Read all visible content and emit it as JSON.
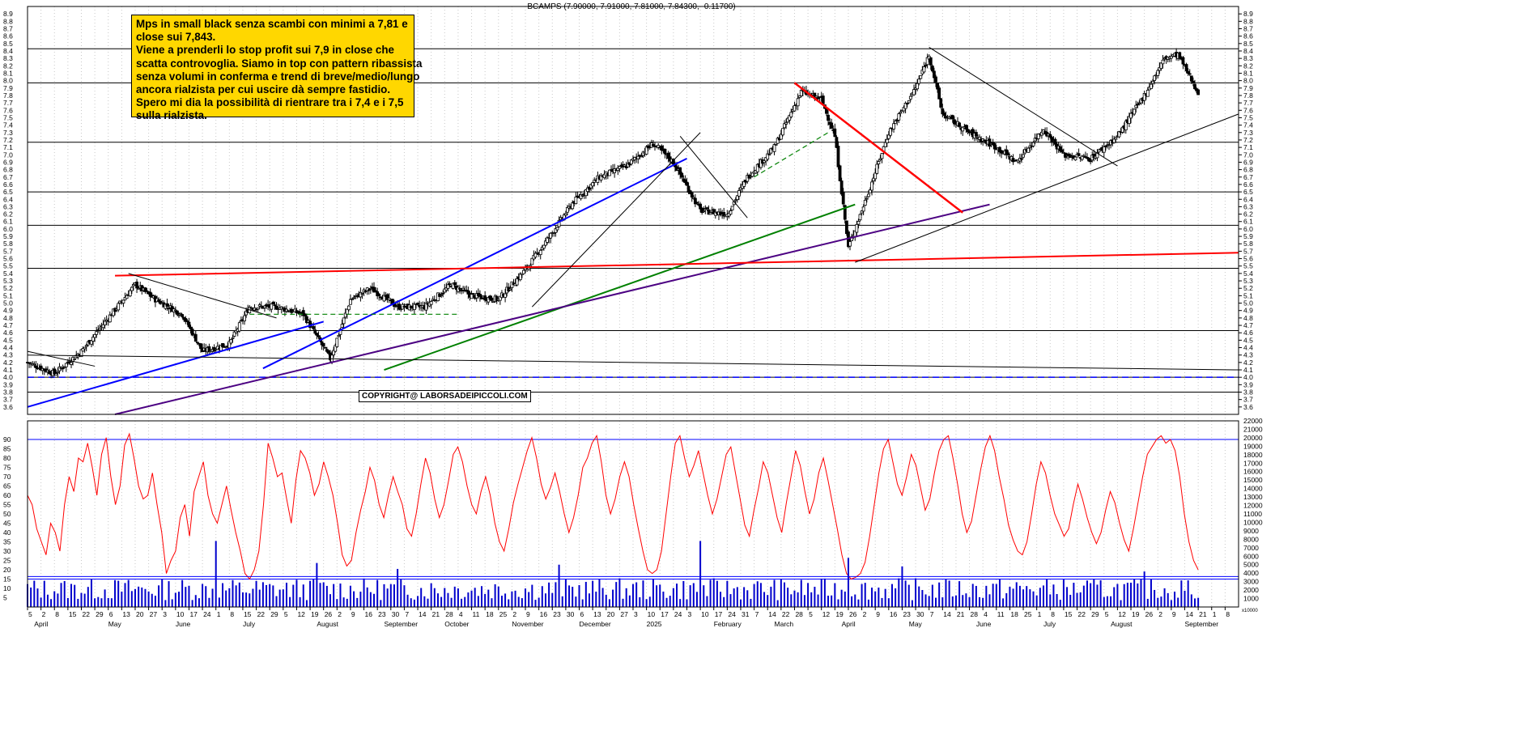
{
  "header": {
    "title": "BCAMPS (7.90000, 7.91000, 7.81000, 7.84300, -0.11700)"
  },
  "note": {
    "lines": [
      "Mps in small black senza scambi con minimi a 7,81 e",
      "close sui 7,843.",
      "Viene a prenderli lo stop profit sui 7,9 in close che",
      "scatta controvoglia. Siamo in top con pattern ribassista",
      "senza volumi in conferma e trend di breve/medio/lungo",
      "ancora rialzista per cui uscire dà sempre fastidio.",
      "Spero mi dia la possibilità di rientrare tra i 7,4 e i 7,5",
      "sulla rialzista."
    ]
  },
  "copyright": "COPYRIGHT@ LABORSADEIPICCOLI.COM",
  "colors": {
    "candles": "#000000",
    "rsi": "#ff0000",
    "volume": "#0000cc",
    "blue_lines": "#0000ff",
    "red_lines": "#ff0000",
    "green_lines": "#008000",
    "purple_lines": "#4b0082",
    "note_bg": "#ffd700"
  },
  "chart_data": [
    {
      "type": "candlestick",
      "series": [
        {
          "name": "BCAMPS"
        }
      ],
      "ylim": [
        3.5,
        9.0
      ],
      "y_ticks": [
        3.6,
        3.7,
        3.8,
        3.9,
        4.0,
        4.1,
        4.2,
        4.3,
        4.4,
        4.5,
        4.6,
        4.7,
        4.8,
        4.9,
        5.0,
        5.1,
        5.2,
        5.3,
        5.4,
        5.5,
        5.6,
        5.7,
        5.8,
        5.9,
        6.0,
        6.1,
        6.2,
        6.3,
        6.4,
        6.5,
        6.6,
        6.7,
        6.8,
        6.9,
        7.0,
        7.1,
        7.2,
        7.3,
        7.4,
        7.5,
        7.6,
        7.7,
        7.8,
        7.9,
        8.0,
        8.1,
        8.2,
        8.3,
        8.4,
        8.5,
        8.6,
        8.7,
        8.8,
        8.9
      ],
      "y_tick_labels": [
        "3.6",
        "3.7",
        "3.8",
        "3.9",
        "4.0",
        "4.1",
        "4.2",
        "4.3",
        "4.4",
        "4.5",
        "4.6",
        "4.7",
        "4.8",
        "4.9",
        "5.0",
        "5.1",
        "5.2",
        "5.3",
        "5.4",
        "5.5",
        "5.6",
        "5.7",
        "5.8",
        "5.9",
        "6.0",
        "6.1",
        "6.2",
        "6.3",
        "6.4",
        "6.5",
        "6.6",
        "6.7",
        "6.8",
        "6.9",
        "7.0",
        "7.1",
        "7.2",
        "7.3",
        "7.4",
        "7.5",
        "7.6",
        "7.7",
        "7.8",
        "7.9",
        "8.0",
        "8.1",
        "8.2",
        "8.3",
        "8.4",
        "8.5",
        "8.6",
        "8.7",
        "8.8",
        "8.9"
      ],
      "horizontal_levels": [
        8.43,
        7.97,
        7.17,
        6.5,
        6.05,
        5.47,
        4.63,
        4.0,
        3.8
      ],
      "close_path": [
        {
          "x": 0,
          "y": 4.2
        },
        {
          "x": 4,
          "y": 4.05
        },
        {
          "x": 8,
          "y": 4.35
        },
        {
          "x": 12,
          "y": 4.8
        },
        {
          "x": 16,
          "y": 5.25
        },
        {
          "x": 19,
          "y": 5.05
        },
        {
          "x": 23,
          "y": 4.85
        },
        {
          "x": 26,
          "y": 4.35
        },
        {
          "x": 30,
          "y": 4.45
        },
        {
          "x": 33,
          "y": 4.95
        },
        {
          "x": 37,
          "y": 4.95
        },
        {
          "x": 41,
          "y": 4.85
        },
        {
          "x": 45,
          "y": 4.25
        },
        {
          "x": 48,
          "y": 5.05
        },
        {
          "x": 51,
          "y": 5.2
        },
        {
          "x": 55,
          "y": 4.95
        },
        {
          "x": 59,
          "y": 4.95
        },
        {
          "x": 63,
          "y": 5.25
        },
        {
          "x": 66,
          "y": 5.1
        },
        {
          "x": 70,
          "y": 5.05
        },
        {
          "x": 74,
          "y": 5.45
        },
        {
          "x": 78,
          "y": 5.95
        },
        {
          "x": 81,
          "y": 6.35
        },
        {
          "x": 85,
          "y": 6.7
        },
        {
          "x": 89,
          "y": 6.85
        },
        {
          "x": 93,
          "y": 7.15
        },
        {
          "x": 96,
          "y": 6.9
        },
        {
          "x": 100,
          "y": 6.25
        },
        {
          "x": 104,
          "y": 6.2
        },
        {
          "x": 107,
          "y": 6.7
        },
        {
          "x": 111,
          "y": 7.1
        },
        {
          "x": 115,
          "y": 7.85
        },
        {
          "x": 118,
          "y": 7.75
        },
        {
          "x": 120,
          "y": 7.25
        },
        {
          "x": 122,
          "y": 5.75
        },
        {
          "x": 125,
          "y": 6.5
        },
        {
          "x": 128,
          "y": 7.3
        },
        {
          "x": 132,
          "y": 7.9
        },
        {
          "x": 134,
          "y": 8.35
        },
        {
          "x": 136,
          "y": 7.55
        },
        {
          "x": 140,
          "y": 7.3
        },
        {
          "x": 144,
          "y": 7.1
        },
        {
          "x": 147,
          "y": 6.9
        },
        {
          "x": 151,
          "y": 7.35
        },
        {
          "x": 154,
          "y": 7.0
        },
        {
          "x": 158,
          "y": 6.95
        },
        {
          "x": 162,
          "y": 7.25
        },
        {
          "x": 166,
          "y": 7.8
        },
        {
          "x": 169,
          "y": 8.3
        },
        {
          "x": 171,
          "y": 8.35
        },
        {
          "x": 174,
          "y": 7.84
        }
      ]
    },
    {
      "type": "line",
      "series": [
        {
          "name": "RSI"
        }
      ],
      "ylim": [
        0,
        100
      ],
      "y_ticks": [
        5,
        10,
        15,
        20,
        25,
        30,
        35,
        40,
        45,
        50,
        55,
        60,
        65,
        70,
        75,
        80,
        85,
        90
      ],
      "y_tick_labels": [
        "5",
        "10",
        "15",
        "20",
        "25",
        "30",
        "35",
        "40",
        "45",
        "50",
        "55",
        "60",
        "65",
        "70",
        "75",
        "80",
        "85",
        "90"
      ],
      "horizontal_levels": [
        90,
        15
      ],
      "values": [
        60,
        55,
        42,
        35,
        28,
        45,
        40,
        30,
        55,
        70,
        62,
        80,
        78,
        88,
        75,
        60,
        82,
        91,
        70,
        55,
        65,
        87,
        93,
        80,
        65,
        58,
        60,
        72,
        55,
        40,
        18,
        25,
        30,
        48,
        55,
        38,
        62,
        70,
        78,
        60,
        50,
        45,
        55,
        65,
        52,
        40,
        30,
        18,
        15,
        20,
        30,
        55,
        88,
        80,
        70,
        72,
        58,
        45,
        68,
        84,
        80,
        72,
        60,
        66,
        78,
        70,
        60,
        45,
        28,
        22,
        25,
        40,
        52,
        62,
        75,
        68,
        55,
        48,
        60,
        70,
        62,
        55,
        42,
        38,
        50,
        66,
        80,
        72,
        58,
        48,
        55,
        68,
        82,
        86,
        78,
        65,
        55,
        50,
        62,
        70,
        60,
        45,
        35,
        30,
        42,
        56,
        66,
        75,
        84,
        91,
        80,
        66,
        58,
        64,
        72,
        62,
        50,
        40,
        48,
        60,
        75,
        80,
        88,
        92,
        78,
        60,
        50,
        58,
        70,
        78,
        70,
        55,
        42,
        30,
        20,
        18,
        20,
        30,
        50,
        70,
        88,
        92,
        80,
        70,
        76,
        84,
        72,
        60,
        50,
        58,
        70,
        82,
        86,
        72,
        58,
        44,
        38,
        52,
        64,
        78,
        72,
        60,
        48,
        40,
        56,
        70,
        84,
        76,
        62,
        50,
        58,
        72,
        80,
        68,
        55,
        42,
        28,
        18,
        15,
        16,
        18,
        24,
        38,
        55,
        72,
        85,
        90,
        78,
        66,
        60,
        70,
        82,
        76,
        64,
        52,
        58,
        72,
        84,
        90,
        92,
        80,
        66,
        50,
        40,
        46,
        60,
        74,
        86,
        92,
        84,
        70,
        58,
        44,
        36,
        30,
        28,
        35,
        50,
        66,
        78,
        72,
        60,
        50,
        44,
        38,
        42,
        55,
        66,
        58,
        48,
        40,
        34,
        40,
        52,
        62,
        56,
        45,
        36,
        30,
        42,
        56,
        70,
        82,
        86,
        90,
        92,
        88,
        90,
        84,
        70,
        50,
        35,
        25,
        20
      ]
    },
    {
      "type": "bar",
      "series": [
        {
          "name": "Volume"
        }
      ],
      "ylim": [
        0,
        22000
      ],
      "y_ticks": [
        1000,
        2000,
        3000,
        4000,
        5000,
        6000,
        7000,
        8000,
        9000,
        10000,
        11000,
        12000,
        13000,
        14000,
        15000,
        16000,
        17000,
        18000,
        19000,
        20000,
        21000,
        22000
      ],
      "y_tick_labels": [
        "1000",
        "2000",
        "3000",
        "4000",
        "5000",
        "6000",
        "7000",
        "8000",
        "9000",
        "10000",
        "11000",
        "12000",
        "13000",
        "14000",
        "15000",
        "16000",
        "17000",
        "18000",
        "19000",
        "20000",
        "21000",
        "22000"
      ],
      "axis_note": "x10000",
      "horizontal_levels": [
        3600
      ],
      "spikes": [
        {
          "x": 28,
          "value": 7800
        },
        {
          "x": 43,
          "value": 5200
        },
        {
          "x": 55,
          "value": 4500
        },
        {
          "x": 79,
          "value": 5000
        },
        {
          "x": 100,
          "value": 7800
        },
        {
          "x": 122,
          "value": 5800
        },
        {
          "x": 130,
          "value": 4800
        },
        {
          "x": 166,
          "value": 4200
        }
      ]
    }
  ],
  "x_axis": {
    "day_ticks": [
      {
        "x": 0,
        "label": "5"
      },
      {
        "x": 2,
        "label": "2"
      },
      {
        "x": 4,
        "label": "8"
      },
      {
        "x": 6,
        "label": "15"
      },
      {
        "x": 8,
        "label": "22"
      },
      {
        "x": 10,
        "label": "29"
      },
      {
        "x": 12,
        "label": "6"
      },
      {
        "x": 14,
        "label": "13"
      },
      {
        "x": 16,
        "label": "20"
      },
      {
        "x": 18,
        "label": "27"
      },
      {
        "x": 20,
        "label": "3"
      },
      {
        "x": 22,
        "label": "10"
      },
      {
        "x": 24,
        "label": "17"
      },
      {
        "x": 26,
        "label": "24"
      },
      {
        "x": 28,
        "label": "1"
      },
      {
        "x": 30,
        "label": "8"
      },
      {
        "x": 32,
        "label": "15"
      },
      {
        "x": 34,
        "label": "22"
      },
      {
        "x": 36,
        "label": "29"
      },
      {
        "x": 38,
        "label": "5"
      },
      {
        "x": 40,
        "label": "12"
      },
      {
        "x": 42,
        "label": "19"
      },
      {
        "x": 44,
        "label": "26"
      },
      {
        "x": 46,
        "label": "2"
      },
      {
        "x": 48,
        "label": "9"
      },
      {
        "x": 50,
        "label": "16"
      },
      {
        "x": 52,
        "label": "23"
      },
      {
        "x": 54,
        "label": "30"
      },
      {
        "x": 56,
        "label": "7"
      },
      {
        "x": 58,
        "label": "14"
      },
      {
        "x": 60,
        "label": "21"
      },
      {
        "x": 62,
        "label": "28"
      },
      {
        "x": 64,
        "label": "4"
      },
      {
        "x": 66,
        "label": "11"
      },
      {
        "x": 68,
        "label": "18"
      },
      {
        "x": 70,
        "label": "25"
      },
      {
        "x": 72,
        "label": "2"
      },
      {
        "x": 74,
        "label": "9"
      },
      {
        "x": 76,
        "label": "16"
      },
      {
        "x": 78,
        "label": "23"
      },
      {
        "x": 80,
        "label": "30"
      },
      {
        "x": 82,
        "label": "6"
      },
      {
        "x": 84,
        "label": "13"
      },
      {
        "x": 86,
        "label": "20"
      },
      {
        "x": 88,
        "label": "27"
      },
      {
        "x": 90,
        "label": "3"
      },
      {
        "x": 92,
        "label": "10"
      },
      {
        "x": 94,
        "label": "17"
      },
      {
        "x": 96,
        "label": "24"
      },
      {
        "x": 98,
        "label": "3"
      },
      {
        "x": 100,
        "label": "10"
      },
      {
        "x": 102,
        "label": "17"
      },
      {
        "x": 104,
        "label": "24"
      },
      {
        "x": 106,
        "label": "31"
      },
      {
        "x": 108,
        "label": "7"
      },
      {
        "x": 110,
        "label": "14"
      },
      {
        "x": 112,
        "label": "22"
      },
      {
        "x": 114,
        "label": "28"
      },
      {
        "x": 116,
        "label": "5"
      },
      {
        "x": 118,
        "label": "12"
      },
      {
        "x": 120,
        "label": "19"
      },
      {
        "x": 122,
        "label": "26"
      },
      {
        "x": 124,
        "label": "2"
      },
      {
        "x": 126,
        "label": "9"
      },
      {
        "x": 128,
        "label": "16"
      },
      {
        "x": 130,
        "label": "23"
      },
      {
        "x": 132,
        "label": "30"
      },
      {
        "x": 134,
        "label": "7"
      },
      {
        "x": 136,
        "label": "14"
      },
      {
        "x": 138,
        "label": "21"
      },
      {
        "x": 140,
        "label": "28"
      },
      {
        "x": 142,
        "label": "4"
      },
      {
        "x": 144,
        "label": "11"
      },
      {
        "x": 146,
        "label": "18"
      },
      {
        "x": 148,
        "label": "25"
      },
      {
        "x": 150,
        "label": "1"
      },
      {
        "x": 152,
        "label": "8"
      },
      {
        "x": 154,
        "label": "15"
      },
      {
        "x": 156,
        "label": "22"
      },
      {
        "x": 158,
        "label": "29"
      },
      {
        "x": 160,
        "label": "5"
      },
      {
        "x": 162,
        "label": "12"
      },
      {
        "x": 164,
        "label": "19"
      },
      {
        "x": 166,
        "label": "26"
      },
      {
        "x": 168,
        "label": "2"
      },
      {
        "x": 170,
        "label": "9"
      },
      {
        "x": 172,
        "label": "14"
      },
      {
        "x": 174,
        "label": "21"
      },
      {
        "x": 176,
        "label": "1"
      },
      {
        "x": 178,
        "label": "8"
      }
    ],
    "months": [
      {
        "x": 1,
        "label": "April"
      },
      {
        "x": 12,
        "label": "May"
      },
      {
        "x": 22,
        "label": "June"
      },
      {
        "x": 32,
        "label": "July"
      },
      {
        "x": 43,
        "label": "August"
      },
      {
        "x": 53,
        "label": "September"
      },
      {
        "x": 62,
        "label": "October"
      },
      {
        "x": 72,
        "label": "November"
      },
      {
        "x": 82,
        "label": "December"
      },
      {
        "x": 92,
        "label": "2025"
      },
      {
        "x": 102,
        "label": "February"
      },
      {
        "x": 111,
        "label": "March"
      },
      {
        "x": 121,
        "label": "April"
      },
      {
        "x": 131,
        "label": "May"
      },
      {
        "x": 141,
        "label": "June"
      },
      {
        "x": 151,
        "label": "July"
      },
      {
        "x": 161,
        "label": "August"
      },
      {
        "x": 172,
        "label": "September"
      }
    ]
  }
}
